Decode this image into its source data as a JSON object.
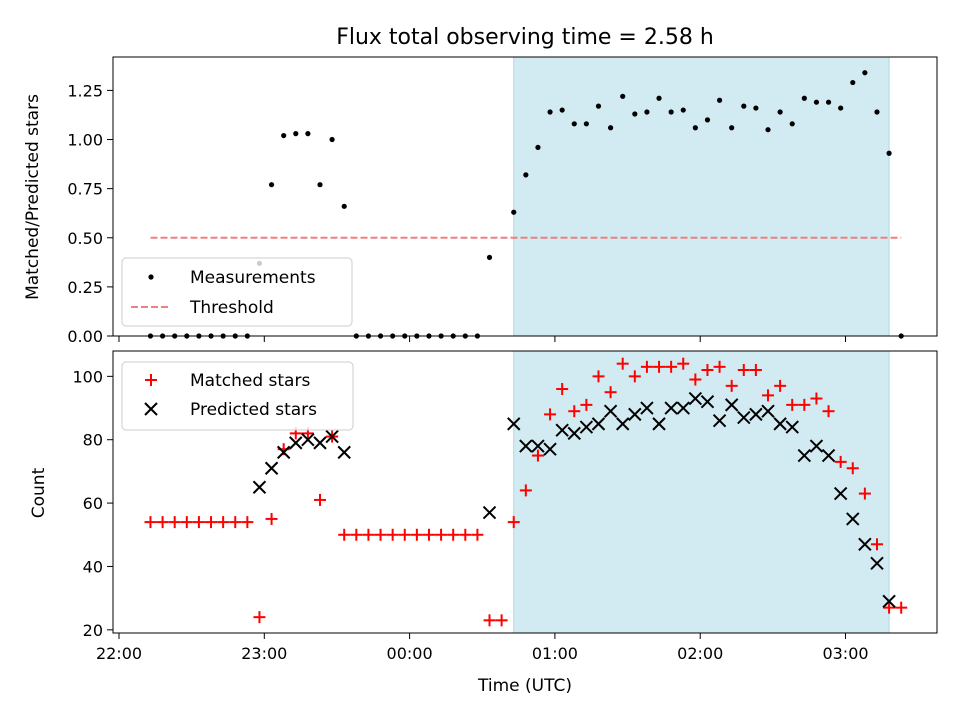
{
  "title": "Flux total observing time = 2.58 h",
  "xlabel": "Time (UTC)",
  "colors": {
    "band": "#add8e6",
    "threshold": "#f08080",
    "measurements": "#000000",
    "matched": "#ff0000",
    "predicted": "#000000"
  },
  "chart_data": [
    {
      "type": "scatter",
      "ylabel": "Matched/Predicted stars",
      "xlim": [
        "22:00",
        "03:40"
      ],
      "ylim": [
        0,
        1.42
      ],
      "y_ticks": [
        0,
        0.25,
        0.5,
        0.75,
        1.0,
        1.25
      ],
      "y_tick_labels": [
        "0.00",
        "0.25",
        "0.50",
        "0.75",
        "1.00",
        "1.25"
      ],
      "shaded_interval": [
        "00:43",
        "03:18"
      ],
      "legend": {
        "position": "lower-left",
        "entries": [
          "Measurements",
          "Threshold"
        ]
      },
      "threshold": {
        "name": "Threshold",
        "y": 0.5,
        "x_start": "22:13",
        "x_end": "03:23"
      },
      "series": [
        {
          "name": "Measurements",
          "points": [
            [
              "22:13",
              0.0
            ],
            [
              "22:18",
              0.0
            ],
            [
              "22:23",
              0.0
            ],
            [
              "22:28",
              0.0
            ],
            [
              "22:33",
              0.0
            ],
            [
              "22:38",
              0.0
            ],
            [
              "22:43",
              0.0
            ],
            [
              "22:48",
              0.0
            ],
            [
              "22:53",
              0.0
            ],
            [
              "22:58",
              0.37
            ],
            [
              "23:03",
              0.77
            ],
            [
              "23:08",
              1.02
            ],
            [
              "23:13",
              1.03
            ],
            [
              "23:18",
              1.03
            ],
            [
              "23:23",
              0.77
            ],
            [
              "23:28",
              1.0
            ],
            [
              "23:33",
              0.66
            ],
            [
              "23:38",
              0.0
            ],
            [
              "23:43",
              0.0
            ],
            [
              "23:48",
              0.0
            ],
            [
              "23:53",
              0.0
            ],
            [
              "23:58",
              0.0
            ],
            [
              "00:03",
              0.0
            ],
            [
              "00:08",
              0.0
            ],
            [
              "00:13",
              0.0
            ],
            [
              "00:18",
              0.0
            ],
            [
              "00:23",
              0.0
            ],
            [
              "00:28",
              0.0
            ],
            [
              "00:33",
              0.4
            ],
            [
              "00:43",
              0.63
            ],
            [
              "00:48",
              0.82
            ],
            [
              "00:53",
              0.96
            ],
            [
              "00:58",
              1.14
            ],
            [
              "01:03",
              1.15
            ],
            [
              "01:08",
              1.08
            ],
            [
              "01:13",
              1.08
            ],
            [
              "01:18",
              1.17
            ],
            [
              "01:23",
              1.06
            ],
            [
              "01:28",
              1.22
            ],
            [
              "01:33",
              1.13
            ],
            [
              "01:38",
              1.14
            ],
            [
              "01:43",
              1.21
            ],
            [
              "01:48",
              1.14
            ],
            [
              "01:53",
              1.15
            ],
            [
              "01:58",
              1.06
            ],
            [
              "02:03",
              1.1
            ],
            [
              "02:08",
              1.2
            ],
            [
              "02:13",
              1.06
            ],
            [
              "02:18",
              1.17
            ],
            [
              "02:23",
              1.16
            ],
            [
              "02:28",
              1.05
            ],
            [
              "02:33",
              1.14
            ],
            [
              "02:38",
              1.08
            ],
            [
              "02:43",
              1.21
            ],
            [
              "02:48",
              1.19
            ],
            [
              "02:53",
              1.19
            ],
            [
              "02:58",
              1.16
            ],
            [
              "03:03",
              1.29
            ],
            [
              "03:08",
              1.34
            ],
            [
              "03:13",
              1.14
            ],
            [
              "03:18",
              0.93
            ],
            [
              "03:23",
              0.0
            ]
          ]
        }
      ]
    },
    {
      "type": "scatter",
      "ylabel": "Count",
      "xlim": [
        "22:00",
        "03:40"
      ],
      "ylim": [
        19,
        108
      ],
      "y_ticks": [
        20,
        40,
        60,
        80,
        100
      ],
      "x_ticks": [
        "22:00",
        "23:00",
        "00:00",
        "01:00",
        "02:00",
        "03:00"
      ],
      "shaded_interval": [
        "00:43",
        "03:18"
      ],
      "legend": {
        "position": "top-left",
        "entries": [
          "Matched stars",
          "Predicted stars"
        ]
      },
      "series": [
        {
          "name": "Matched stars",
          "marker": "+",
          "points": [
            [
              "22:13",
              54
            ],
            [
              "22:18",
              54
            ],
            [
              "22:23",
              54
            ],
            [
              "22:28",
              54
            ],
            [
              "22:33",
              54
            ],
            [
              "22:38",
              54
            ],
            [
              "22:43",
              54
            ],
            [
              "22:48",
              54
            ],
            [
              "22:53",
              54
            ],
            [
              "22:58",
              24
            ],
            [
              "23:03",
              55
            ],
            [
              "23:08",
              77
            ],
            [
              "23:13",
              82
            ],
            [
              "23:18",
              82
            ],
            [
              "23:23",
              61
            ],
            [
              "23:28",
              81
            ],
            [
              "23:33",
              50
            ],
            [
              "23:38",
              50
            ],
            [
              "23:43",
              50
            ],
            [
              "23:48",
              50
            ],
            [
              "23:53",
              50
            ],
            [
              "23:58",
              50
            ],
            [
              "00:03",
              50
            ],
            [
              "00:08",
              50
            ],
            [
              "00:13",
              50
            ],
            [
              "00:18",
              50
            ],
            [
              "00:23",
              50
            ],
            [
              "00:28",
              50
            ],
            [
              "00:33",
              23
            ],
            [
              "00:38",
              23
            ],
            [
              "00:43",
              54
            ],
            [
              "00:48",
              64
            ],
            [
              "00:53",
              75
            ],
            [
              "00:58",
              88
            ],
            [
              "01:03",
              96
            ],
            [
              "01:08",
              89
            ],
            [
              "01:13",
              91
            ],
            [
              "01:18",
              100
            ],
            [
              "01:23",
              95
            ],
            [
              "01:28",
              104
            ],
            [
              "01:33",
              100
            ],
            [
              "01:38",
              103
            ],
            [
              "01:43",
              103
            ],
            [
              "01:48",
              103
            ],
            [
              "01:53",
              104
            ],
            [
              "01:58",
              99
            ],
            [
              "02:03",
              102
            ],
            [
              "02:08",
              103
            ],
            [
              "02:13",
              97
            ],
            [
              "02:18",
              102
            ],
            [
              "02:23",
              102
            ],
            [
              "02:28",
              94
            ],
            [
              "02:33",
              97
            ],
            [
              "02:38",
              91
            ],
            [
              "02:43",
              91
            ],
            [
              "02:48",
              93
            ],
            [
              "02:53",
              89
            ],
            [
              "02:58",
              73
            ],
            [
              "03:03",
              71
            ],
            [
              "03:08",
              63
            ],
            [
              "03:13",
              47
            ],
            [
              "03:18",
              27
            ],
            [
              "03:23",
              27
            ]
          ]
        },
        {
          "name": "Predicted stars",
          "marker": "x",
          "points": [
            [
              "22:58",
              65
            ],
            [
              "23:03",
              71
            ],
            [
              "23:08",
              76
            ],
            [
              "23:13",
              79
            ],
            [
              "23:18",
              80
            ],
            [
              "23:23",
              79
            ],
            [
              "23:28",
              81
            ],
            [
              "23:33",
              76
            ],
            [
              "00:33",
              57
            ],
            [
              "00:43",
              85
            ],
            [
              "00:48",
              78
            ],
            [
              "00:53",
              78
            ],
            [
              "00:58",
              77
            ],
            [
              "01:03",
              83
            ],
            [
              "01:08",
              82
            ],
            [
              "01:13",
              84
            ],
            [
              "01:18",
              85
            ],
            [
              "01:23",
              89
            ],
            [
              "01:28",
              85
            ],
            [
              "01:33",
              88
            ],
            [
              "01:38",
              90
            ],
            [
              "01:43",
              85
            ],
            [
              "01:48",
              90
            ],
            [
              "01:53",
              90
            ],
            [
              "01:58",
              93
            ],
            [
              "02:03",
              92
            ],
            [
              "02:08",
              86
            ],
            [
              "02:13",
              91
            ],
            [
              "02:18",
              87
            ],
            [
              "02:23",
              88
            ],
            [
              "02:28",
              89
            ],
            [
              "02:33",
              85
            ],
            [
              "02:38",
              84
            ],
            [
              "02:43",
              75
            ],
            [
              "02:48",
              78
            ],
            [
              "02:53",
              75
            ],
            [
              "02:58",
              63
            ],
            [
              "03:03",
              55
            ],
            [
              "03:08",
              47
            ],
            [
              "03:13",
              41
            ],
            [
              "03:18",
              29
            ]
          ]
        }
      ]
    }
  ]
}
